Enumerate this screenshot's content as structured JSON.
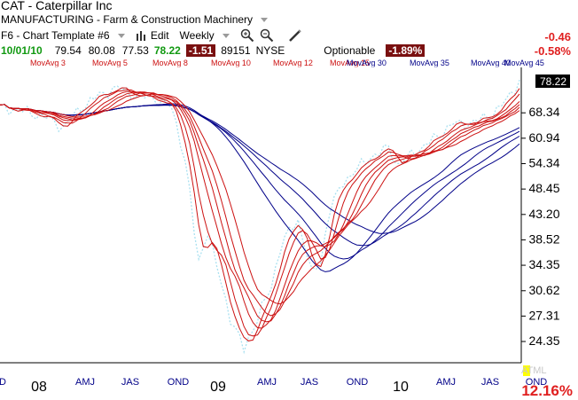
{
  "header": {
    "ticker_line": "CAT  - Caterpillar Inc",
    "industry": "MANUFACTURING - Farm & Construction Machinery",
    "template": "F6 - Chart Template #6",
    "edit": "Edit",
    "period": "Weekly",
    "date": "10/01/10",
    "open": "79.54",
    "high": "80.08",
    "low": "77.53",
    "close": "78.22",
    "change": "-1.51",
    "volume": "89151",
    "exchange": "NYSE",
    "optionable": "Optionable",
    "change_pct": "-1.89%",
    "right_change": "-0.46",
    "right_change_pct": "-0.58%"
  },
  "legend": {
    "items": [
      {
        "label": "MovAvg 3",
        "color": "#cc1111"
      },
      {
        "label": "MovAvg 5",
        "color": "#cc1111"
      },
      {
        "label": "MovAvg 8",
        "color": "#cc1111"
      },
      {
        "label": "MovAvg 10",
        "color": "#cc1111"
      },
      {
        "label": "MovAvg 12",
        "color": "#cc1111"
      },
      {
        "label": "MovAvg 15",
        "color": "#cc1111"
      },
      {
        "label": "MovAvg 30",
        "color": "#000088"
      },
      {
        "label": "MovAvg 35",
        "color": "#000088"
      },
      {
        "label": "MovAvg 40",
        "color": "#000088"
      },
      {
        "label": "MovAvg 45",
        "color": "#000088"
      }
    ]
  },
  "chart_data": {
    "type": "line",
    "price_label": "78.22",
    "y_ticks": [
      "68.34",
      "60.94",
      "54.34",
      "48.45",
      "43.20",
      "38.52",
      "34.35",
      "30.62",
      "27.31",
      "24.35"
    ],
    "x_labels": [
      {
        "label": "D",
        "color": "#000088"
      },
      {
        "label": "08",
        "color": "#000000",
        "big": true
      },
      {
        "label": "AMJ",
        "color": "#000088"
      },
      {
        "label": "JAS",
        "color": "#000088"
      },
      {
        "label": "OND",
        "color": "#000088"
      },
      {
        "label": "09",
        "color": "#000000",
        "big": true
      },
      {
        "label": "AMJ",
        "color": "#000088"
      },
      {
        "label": "JAS",
        "color": "#000088"
      },
      {
        "label": "OND",
        "color": "#000088"
      },
      {
        "label": "10",
        "color": "#000000",
        "big": true
      },
      {
        "label": "AMJ",
        "color": "#000088"
      },
      {
        "label": "JAS",
        "color": "#000088"
      },
      {
        "label": "OND",
        "color": "#000088"
      }
    ],
    "x_extra": "ATML",
    "pct_change": "12.16%",
    "price_color": "#a8e0f0",
    "short_ma_color": "#cc1111",
    "long_ma_color": "#000088",
    "anchors": [
      {
        "t": 0,
        "v": 70
      },
      {
        "t": 5,
        "v": 69
      },
      {
        "t": 10,
        "v": 67
      },
      {
        "t": 14,
        "v": 64
      },
      {
        "t": 18,
        "v": 70
      },
      {
        "t": 22,
        "v": 74
      },
      {
        "t": 26,
        "v": 76.5
      },
      {
        "t": 30,
        "v": 74
      },
      {
        "t": 34,
        "v": 73
      },
      {
        "t": 38,
        "v": 70
      },
      {
        "t": 41,
        "v": 55
      },
      {
        "t": 43,
        "v": 40
      },
      {
        "t": 44,
        "v": 35
      },
      {
        "t": 46,
        "v": 40
      },
      {
        "t": 48,
        "v": 34
      },
      {
        "t": 51,
        "v": 27
      },
      {
        "t": 54,
        "v": 23.5
      },
      {
        "t": 57,
        "v": 27
      },
      {
        "t": 60,
        "v": 31
      },
      {
        "t": 62,
        "v": 37
      },
      {
        "t": 64,
        "v": 40
      },
      {
        "t": 66,
        "v": 42
      },
      {
        "t": 69,
        "v": 33
      },
      {
        "t": 71,
        "v": 35
      },
      {
        "t": 73,
        "v": 44
      },
      {
        "t": 76,
        "v": 50
      },
      {
        "t": 79,
        "v": 53
      },
      {
        "t": 82,
        "v": 56
      },
      {
        "t": 84,
        "v": 57
      },
      {
        "t": 86,
        "v": 58.5
      },
      {
        "t": 88,
        "v": 54
      },
      {
        "t": 91,
        "v": 56.5
      },
      {
        "t": 94,
        "v": 59
      },
      {
        "t": 97,
        "v": 61.5
      },
      {
        "t": 100,
        "v": 65
      },
      {
        "t": 103,
        "v": 65
      },
      {
        "t": 106,
        "v": 66
      },
      {
        "t": 109,
        "v": 68
      },
      {
        "t": 112,
        "v": 72
      },
      {
        "t": 115,
        "v": 79
      }
    ],
    "short_periods": [
      3,
      5,
      8,
      10,
      12,
      15
    ],
    "long_periods": [
      30,
      35,
      40,
      45
    ]
  }
}
